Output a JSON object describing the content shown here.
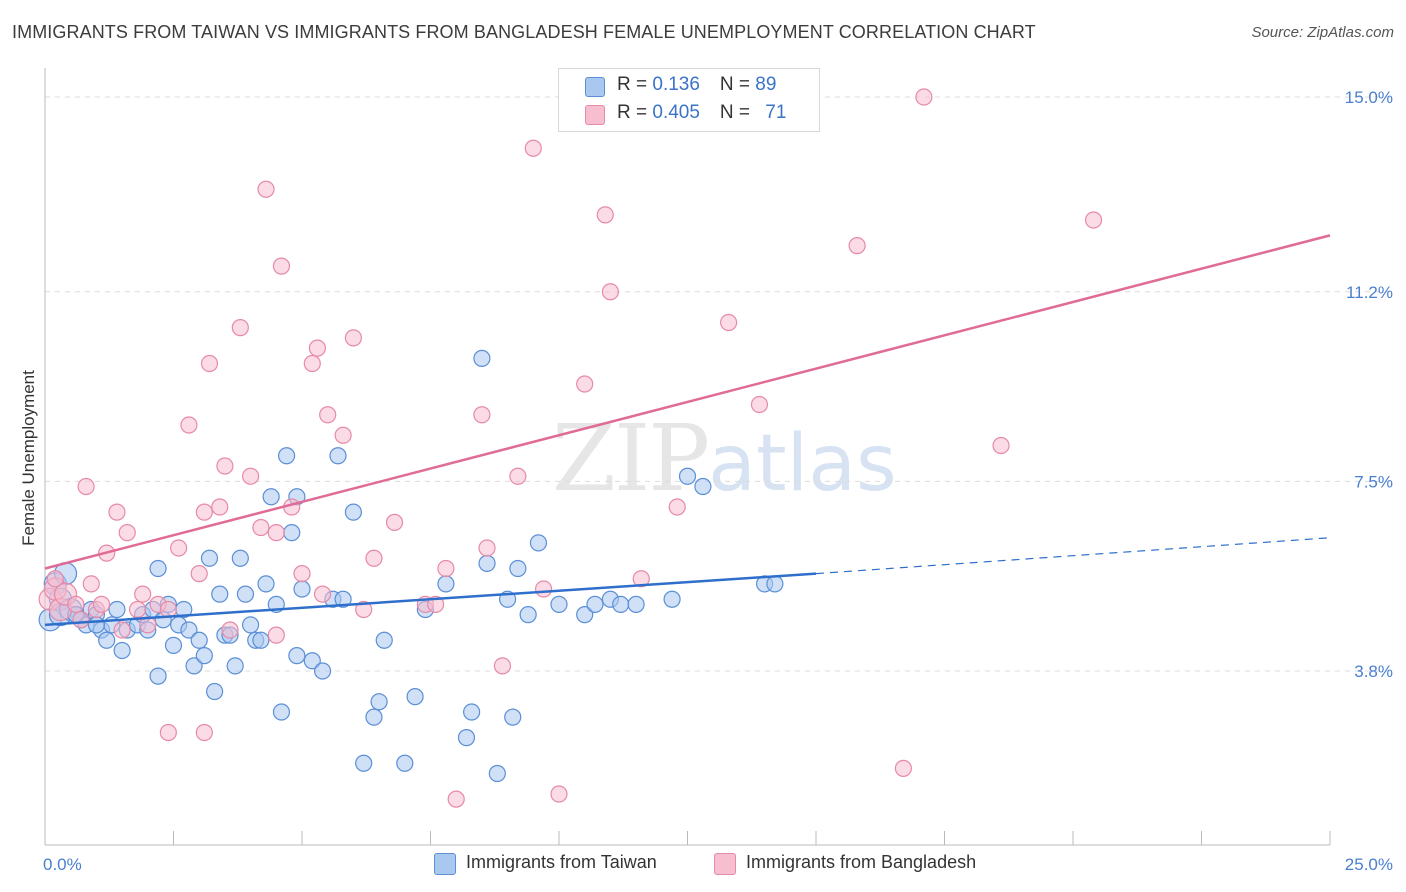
{
  "header": {
    "title": "IMMIGRANTS FROM TAIWAN VS IMMIGRANTS FROM BANGLADESH FEMALE UNEMPLOYMENT CORRELATION CHART",
    "source": "Source: ZipAtlas.com"
  },
  "watermark": {
    "zip": "ZIP",
    "atlas": "atlas"
  },
  "legend": {
    "taiwan": {
      "r_label": "R = ",
      "r_value": "0.136",
      "n_label": "N = ",
      "n_value": "89"
    },
    "bangladesh": {
      "r_label": "R = ",
      "r_value": "0.405",
      "n_label": "N = ",
      "n_value": "71"
    }
  },
  "bottom_legend": {
    "taiwan": "Immigrants from Taiwan",
    "bangladesh": "Immigrants from Bangladesh"
  },
  "colors": {
    "taiwan_fill": "#a9c8f0",
    "taiwan_stroke": "#5b8fd6",
    "taiwan_line": "#2f6fcc",
    "bangladesh_fill": "#f7bed0",
    "bangladesh_stroke": "#e68aa8",
    "bangladesh_line": "#e06b96",
    "tick_label": "#4a7fd0"
  },
  "chart_data": {
    "type": "scatter",
    "title": "IMMIGRANTS FROM TAIWAN VS IMMIGRANTS FROM BANGLADESH FEMALE UNEMPLOYMENT CORRELATION CHART",
    "xlabel": "",
    "ylabel": "Female Unemployment",
    "xlim": [
      0,
      25
    ],
    "ylim": [
      0.5,
      15.5
    ],
    "x_tick_labels": [
      {
        "value": 0,
        "label": "0.0%"
      },
      {
        "value": 25,
        "label": "25.0%"
      }
    ],
    "y_ticks": [
      {
        "value": 3.8,
        "label": "3.8%"
      },
      {
        "value": 7.5,
        "label": "7.5%"
      },
      {
        "value": 11.2,
        "label": "11.2%"
      },
      {
        "value": 15.0,
        "label": "15.0%"
      }
    ],
    "grid": true,
    "legend_position": "top-center",
    "series": [
      {
        "name": "Immigrants from Taiwan",
        "trend": {
          "x": [
            0,
            15
          ],
          "y": [
            4.7,
            5.7
          ],
          "dashed_x": [
            15,
            25
          ],
          "dashed_y": [
            5.7,
            6.4
          ]
        },
        "points": [
          [
            0.1,
            4.8
          ],
          [
            0.2,
            5.5
          ],
          [
            0.3,
            5.2
          ],
          [
            0.3,
            4.9
          ],
          [
            0.4,
            5.7
          ],
          [
            0.5,
            5.0
          ],
          [
            0.6,
            4.9
          ],
          [
            0.7,
            4.8
          ],
          [
            0.8,
            4.7
          ],
          [
            0.9,
            5.0
          ],
          [
            1.0,
            4.9
          ],
          [
            1.1,
            4.6
          ],
          [
            1.2,
            4.4
          ],
          [
            1.3,
            4.7
          ],
          [
            1.4,
            5.0
          ],
          [
            1.5,
            4.2
          ],
          [
            1.6,
            4.6
          ],
          [
            1.8,
            4.7
          ],
          [
            1.9,
            4.9
          ],
          [
            2.0,
            4.6
          ],
          [
            2.1,
            5.0
          ],
          [
            2.2,
            3.7
          ],
          [
            2.3,
            4.8
          ],
          [
            2.4,
            5.1
          ],
          [
            2.5,
            4.3
          ],
          [
            2.6,
            4.7
          ],
          [
            2.7,
            5.0
          ],
          [
            2.8,
            4.6
          ],
          [
            2.9,
            3.9
          ],
          [
            3.0,
            4.4
          ],
          [
            3.1,
            4.1
          ],
          [
            3.2,
            6.0
          ],
          [
            3.3,
            3.4
          ],
          [
            3.4,
            5.3
          ],
          [
            3.5,
            4.5
          ],
          [
            3.6,
            4.5
          ],
          [
            3.7,
            3.9
          ],
          [
            3.8,
            6.0
          ],
          [
            3.9,
            5.3
          ],
          [
            4.0,
            4.7
          ],
          [
            4.1,
            4.4
          ],
          [
            4.2,
            4.4
          ],
          [
            4.3,
            5.5
          ],
          [
            4.4,
            7.2
          ],
          [
            4.5,
            5.1
          ],
          [
            4.6,
            3.0
          ],
          [
            4.7,
            8.0
          ],
          [
            4.8,
            6.5
          ],
          [
            4.9,
            7.2
          ],
          [
            5.0,
            5.4
          ],
          [
            5.2,
            4.0
          ],
          [
            5.4,
            3.8
          ],
          [
            5.6,
            5.2
          ],
          [
            5.7,
            8.0
          ],
          [
            5.8,
            5.2
          ],
          [
            6.0,
            6.9
          ],
          [
            6.2,
            2.0
          ],
          [
            6.4,
            2.9
          ],
          [
            6.5,
            3.2
          ],
          [
            6.6,
            4.4
          ],
          [
            7.0,
            2.0
          ],
          [
            7.4,
            5.0
          ],
          [
            7.8,
            5.5
          ],
          [
            8.2,
            2.5
          ],
          [
            8.3,
            3.0
          ],
          [
            8.5,
            9.9
          ],
          [
            8.6,
            5.9
          ],
          [
            8.8,
            1.8
          ],
          [
            9.0,
            5.2
          ],
          [
            9.1,
            2.9
          ],
          [
            9.2,
            5.8
          ],
          [
            9.4,
            4.9
          ],
          [
            9.6,
            6.3
          ],
          [
            10.0,
            5.1
          ],
          [
            10.5,
            4.9
          ],
          [
            10.7,
            5.1
          ],
          [
            11.0,
            5.2
          ],
          [
            11.2,
            5.1
          ],
          [
            11.5,
            5.1
          ],
          [
            12.2,
            5.2
          ],
          [
            12.5,
            7.6
          ],
          [
            12.8,
            7.4
          ],
          [
            14.0,
            5.5
          ],
          [
            14.2,
            5.5
          ],
          [
            7.2,
            3.3
          ],
          [
            4.9,
            4.1
          ],
          [
            2.2,
            5.8
          ],
          [
            0.6,
            4.9
          ],
          [
            1.0,
            4.7
          ]
        ]
      },
      {
        "name": "Immigrants from Bangladesh",
        "trend": {
          "x": [
            0,
            25
          ],
          "y": [
            5.8,
            12.3
          ]
        },
        "points": [
          [
            0.1,
            5.2
          ],
          [
            0.2,
            5.4
          ],
          [
            0.3,
            5.0
          ],
          [
            0.4,
            5.3
          ],
          [
            0.6,
            5.1
          ],
          [
            0.7,
            4.8
          ],
          [
            0.8,
            7.4
          ],
          [
            0.9,
            5.5
          ],
          [
            1.0,
            5.0
          ],
          [
            1.1,
            5.1
          ],
          [
            1.2,
            6.1
          ],
          [
            1.4,
            6.9
          ],
          [
            1.5,
            4.6
          ],
          [
            1.6,
            6.5
          ],
          [
            1.8,
            5.0
          ],
          [
            1.9,
            5.3
          ],
          [
            2.0,
            4.7
          ],
          [
            2.2,
            5.1
          ],
          [
            2.4,
            5.0
          ],
          [
            2.6,
            6.2
          ],
          [
            2.8,
            8.6
          ],
          [
            3.0,
            5.7
          ],
          [
            3.1,
            6.9
          ],
          [
            3.2,
            9.8
          ],
          [
            3.4,
            7.0
          ],
          [
            3.5,
            7.8
          ],
          [
            3.6,
            4.6
          ],
          [
            3.8,
            10.5
          ],
          [
            4.0,
            7.6
          ],
          [
            4.2,
            6.6
          ],
          [
            4.3,
            13.2
          ],
          [
            4.5,
            6.5
          ],
          [
            4.6,
            11.7
          ],
          [
            4.8,
            7.0
          ],
          [
            5.0,
            5.7
          ],
          [
            5.2,
            9.8
          ],
          [
            5.3,
            10.1
          ],
          [
            5.4,
            5.3
          ],
          [
            5.5,
            8.8
          ],
          [
            5.8,
            8.4
          ],
          [
            6.0,
            10.3
          ],
          [
            6.2,
            5.0
          ],
          [
            6.4,
            6.0
          ],
          [
            6.8,
            6.7
          ],
          [
            7.4,
            5.1
          ],
          [
            7.6,
            5.1
          ],
          [
            7.8,
            5.8
          ],
          [
            8.0,
            1.3
          ],
          [
            8.5,
            8.8
          ],
          [
            8.6,
            6.2
          ],
          [
            9.2,
            7.6
          ],
          [
            9.5,
            14.0
          ],
          [
            9.7,
            5.4
          ],
          [
            10.0,
            1.4
          ],
          [
            10.5,
            9.4
          ],
          [
            10.9,
            12.7
          ],
          [
            11.0,
            11.2
          ],
          [
            11.6,
            5.6
          ],
          [
            12.3,
            7.0
          ],
          [
            13.3,
            10.6
          ],
          [
            13.9,
            9.0
          ],
          [
            15.8,
            12.1
          ],
          [
            16.7,
            1.9
          ],
          [
            17.1,
            15.0
          ],
          [
            18.6,
            8.2
          ],
          [
            20.4,
            12.6
          ],
          [
            4.5,
            4.5
          ],
          [
            2.4,
            2.6
          ],
          [
            3.1,
            2.6
          ],
          [
            8.9,
            3.9
          ],
          [
            0.2,
            5.6
          ]
        ]
      }
    ]
  }
}
